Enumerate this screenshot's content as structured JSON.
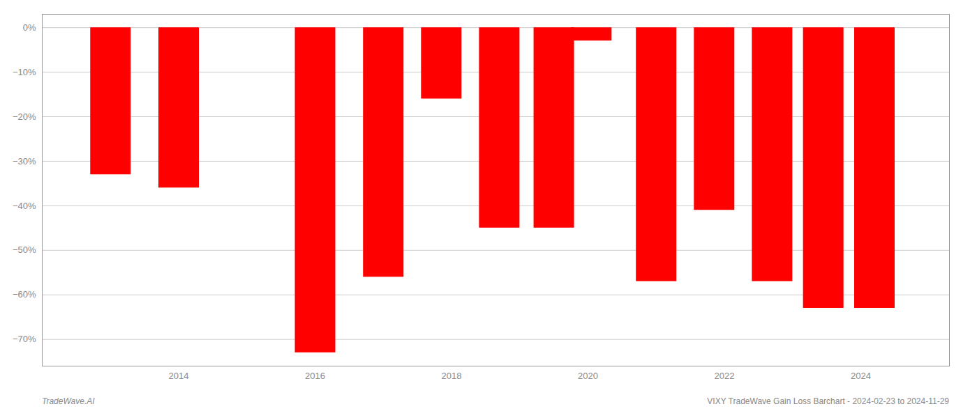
{
  "chart_data": {
    "type": "bar",
    "x": [
      2013,
      2014,
      2016,
      2017,
      2017.85,
      2018.7,
      2019.5,
      2020.05,
      2021,
      2021.85,
      2022.7,
      2023.45,
      2024.2
    ],
    "values": [
      -33,
      -36,
      -73,
      -56,
      -16,
      -45,
      -45,
      -3,
      -57,
      -41,
      -57,
      -63,
      -63
    ],
    "color": "#ff0000",
    "xlim": [
      2012.0,
      2025.3
    ],
    "xticks": [
      2014,
      2016,
      2018,
      2020,
      2022,
      2024
    ],
    "ylim": [
      -76,
      3
    ],
    "yticks": [
      {
        "value": 0,
        "label": "0%"
      },
      {
        "value": -10,
        "label": "−10%"
      },
      {
        "value": -20,
        "label": "−20%"
      },
      {
        "value": -30,
        "label": "−30%"
      },
      {
        "value": -40,
        "label": "−40%"
      },
      {
        "value": -50,
        "label": "−50%"
      },
      {
        "value": -60,
        "label": "−60%"
      },
      {
        "value": -70,
        "label": "−70%"
      }
    ],
    "grid": true,
    "annotations": [
      "TradeWave.AI",
      "VIXY TradeWave Gain Loss Barchart - 2024-02-23 to 2024-11-29"
    ]
  }
}
